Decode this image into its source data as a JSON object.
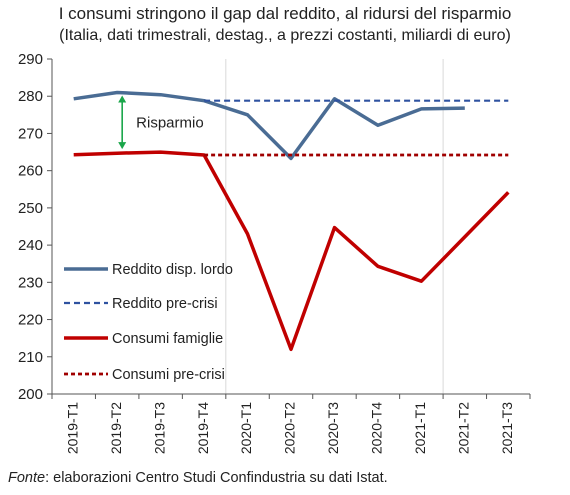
{
  "chart_data": {
    "type": "line",
    "title": "I consumi stringono il gap dal reddito, al ridursi del risparmio",
    "subtitle": "(Italia, dati trimestrali, destag., a prezzi costanti, miliardi di euro)",
    "categories": [
      "2019-T1",
      "2019-T2",
      "2019-T3",
      "2019-T4",
      "2020-T1",
      "2020-T2",
      "2020-T3",
      "2020-T4",
      "2021-T1",
      "2021-T2",
      "2021-T3"
    ],
    "ylim": [
      200,
      290
    ],
    "yticks": [
      200,
      210,
      220,
      230,
      240,
      250,
      260,
      270,
      280,
      290
    ],
    "series": [
      {
        "name": "Reddito disp. lordo",
        "style": "solid",
        "color": "#4a6c94",
        "values": [
          279.3,
          281.0,
          280.4,
          278.8,
          275.0,
          263.3,
          279.3,
          272.2,
          276.6,
          276.8,
          null
        ]
      },
      {
        "name": "Reddito pre-crisi",
        "style": "dashed",
        "color": "#2e52a0",
        "values": [
          null,
          null,
          null,
          278.8,
          278.8,
          278.8,
          278.8,
          278.8,
          278.8,
          278.8,
          278.8
        ]
      },
      {
        "name": "Consumi famiglie",
        "style": "solid",
        "color": "#c00000",
        "values": [
          264.3,
          264.7,
          265.0,
          264.2,
          243.0,
          212.0,
          244.7,
          234.3,
          230.3,
          242.2,
          254.2
        ]
      },
      {
        "name": "Consumi pre-crisi",
        "style": "dotted",
        "color": "#a00000",
        "values": [
          null,
          null,
          null,
          264.2,
          264.2,
          264.2,
          264.2,
          264.2,
          264.2,
          264.2,
          264.2
        ]
      }
    ],
    "annotation": {
      "label": "Risparmio",
      "category": "2019-T2",
      "from": 264.7,
      "to": 281.0,
      "color": "#1aa64a"
    },
    "grid_category_lines": [
      "2019-T4",
      "2021-T1"
    ],
    "legend_placement": "bottom-left",
    "source_label": "Fonte",
    "source_text": ": elaborazioni Centro Studi Confindustria su dati Istat."
  }
}
